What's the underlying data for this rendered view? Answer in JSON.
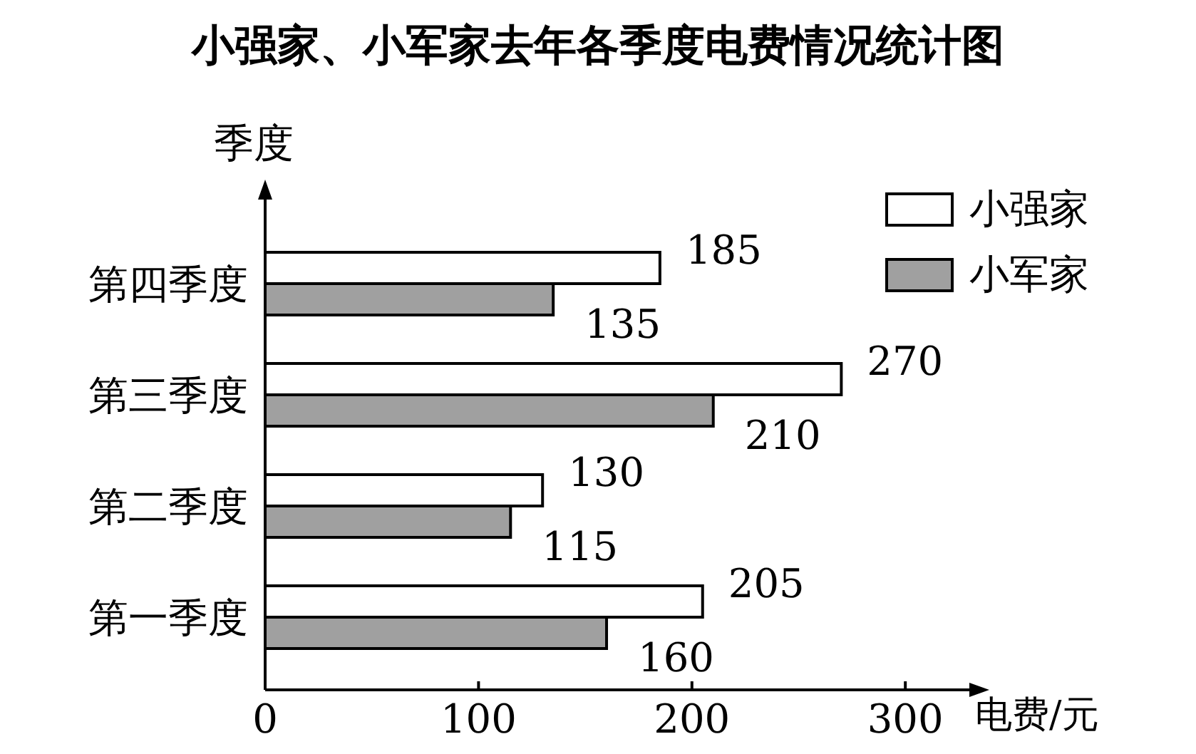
{
  "chart_data": {
    "type": "bar",
    "orientation": "horizontal",
    "title": "小强家、小军家去年各季度电费情况统计图",
    "xlabel": "电费/元",
    "ylabel": "季度",
    "categories": [
      "第四季度",
      "第三季度",
      "第二季度",
      "第一季度"
    ],
    "series": [
      {
        "name": "小强家",
        "color": "#ffffff",
        "values": [
          185,
          270,
          130,
          205
        ]
      },
      {
        "name": "小军家",
        "color": "#a0a0a0",
        "values": [
          135,
          210,
          115,
          160
        ]
      }
    ],
    "xlim": [
      0,
      330
    ],
    "xticks": [
      0,
      100,
      200,
      300
    ],
    "data_labels": true,
    "legend": "top right",
    "grid": false
  }
}
